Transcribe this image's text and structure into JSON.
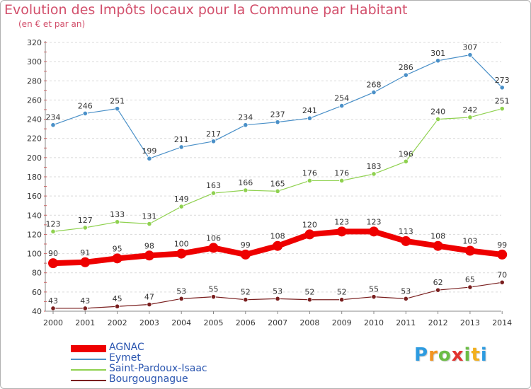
{
  "title": "Evolution des Impôts locaux pour la Commune par Habitant",
  "subtitle": "(en € et par an)",
  "logo": {
    "letters": [
      "P",
      "r",
      "o",
      "x",
      "i",
      "t",
      "i"
    ],
    "colors": [
      "#2d9be0",
      "#f29421",
      "#6bbd45",
      "#e2332f",
      "#6bbd45",
      "#f2b01e",
      "#2d9be0"
    ]
  },
  "chart_data": {
    "type": "line",
    "title": "Evolution des Impôts locaux pour la Commune par Habitant",
    "subtitle": "(en € et par an)",
    "xlabel": "",
    "ylabel": "",
    "x": [
      "2000",
      "2001",
      "2002",
      "2003",
      "2004",
      "2005",
      "2006",
      "2007",
      "2008",
      "2009",
      "2010",
      "2011",
      "2012",
      "2013",
      "2014"
    ],
    "ylim": [
      40,
      320
    ],
    "yticks": [
      40,
      60,
      80,
      100,
      120,
      140,
      160,
      180,
      200,
      220,
      240,
      260,
      280,
      300,
      320
    ],
    "grid": "horizontal dashed",
    "legend_position": "bottom-left",
    "series": [
      {
        "name": "AGNAC",
        "color": "#ee0000",
        "values": [
          90,
          91,
          95,
          98,
          100,
          106,
          99,
          108,
          120,
          123,
          123,
          113,
          108,
          103,
          99
        ]
      },
      {
        "name": "Eymet",
        "color": "#4a90c8",
        "values": [
          234,
          246,
          251,
          199,
          211,
          217,
          234,
          237,
          241,
          254,
          268,
          286,
          301,
          307,
          273
        ]
      },
      {
        "name": "Saint-Pardoux-Isaac",
        "color": "#8fd14f",
        "values": [
          123,
          127,
          133,
          131,
          149,
          163,
          166,
          165,
          176,
          176,
          183,
          196,
          240,
          242,
          251
        ]
      },
      {
        "name": "Bourgougnague",
        "color": "#7a1f1f",
        "values": [
          43,
          43,
          45,
          47,
          53,
          55,
          52,
          53,
          52,
          52,
          55,
          53,
          62,
          65,
          70
        ]
      }
    ]
  }
}
